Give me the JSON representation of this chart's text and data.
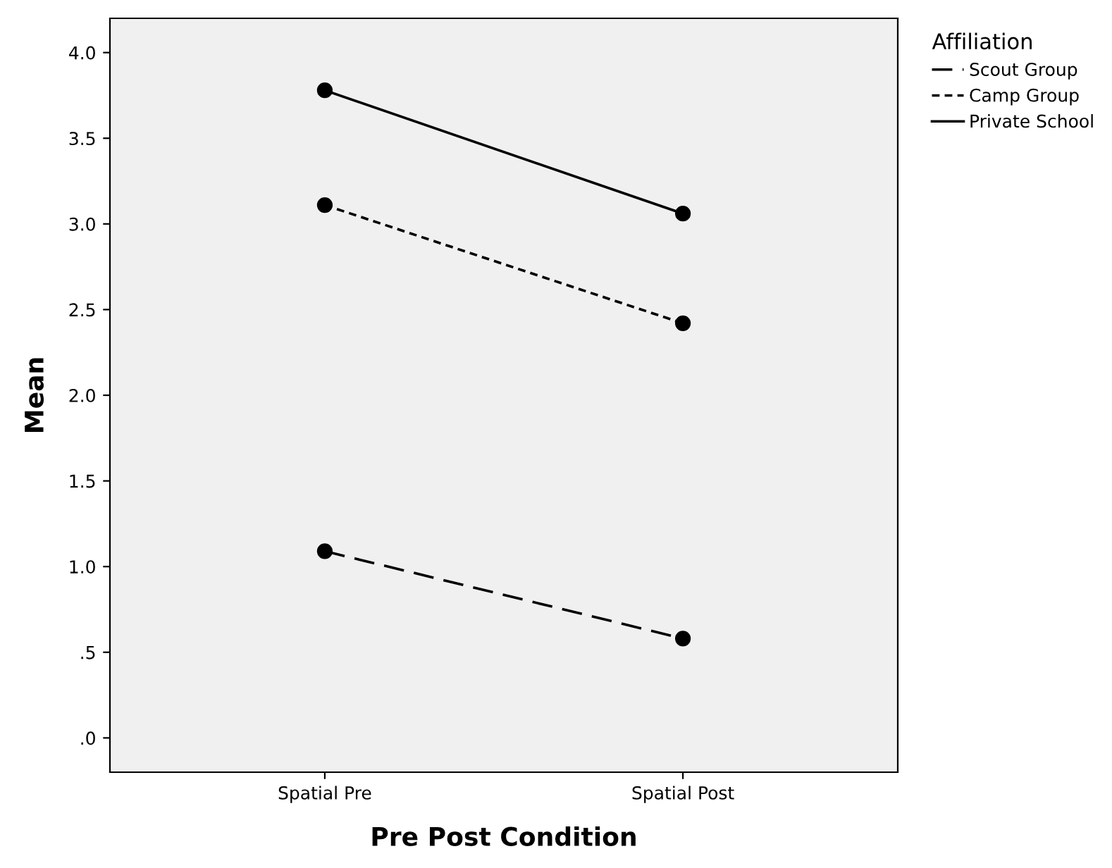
{
  "chart_data": {
    "type": "line",
    "xlabel": "Pre Post Condition",
    "ylabel": "Mean",
    "legend_title": "Affiliation",
    "legend": "top right",
    "marker": "circle",
    "grid": false,
    "categories": [
      "Spatial Pre",
      "Spatial Post"
    ],
    "ylim": [
      -0.2,
      4.2
    ],
    "yticks": [
      {
        "value": 0,
        "label": ".0"
      },
      {
        "value": 0.5,
        "label": ".5"
      },
      {
        "value": 1,
        "label": "1.0"
      },
      {
        "value": 1.5,
        "label": "1.5"
      },
      {
        "value": 2,
        "label": "2.0"
      },
      {
        "value": 2.5,
        "label": "2.5"
      },
      {
        "value": 3,
        "label": "3.0"
      },
      {
        "value": 3.5,
        "label": "3.5"
      },
      {
        "value": 4,
        "label": "4.0"
      }
    ],
    "series": [
      {
        "name": "Scout Group",
        "color": "#000000",
        "line_style": "dashed",
        "values": [
          1.09,
          0.58
        ]
      },
      {
        "name": "Camp Group",
        "color": "#000000",
        "line_style": "dotted",
        "values": [
          3.11,
          2.42
        ]
      },
      {
        "name": "Private School",
        "color": "#000000",
        "line_style": "solid",
        "values": [
          3.78,
          3.06
        ]
      }
    ]
  }
}
